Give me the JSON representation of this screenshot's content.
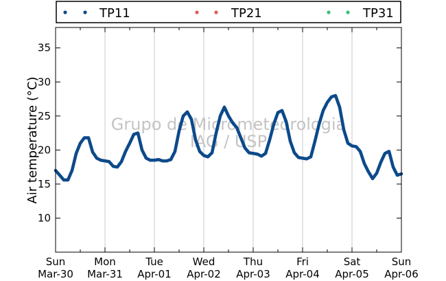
{
  "chart_data": {
    "type": "scatter",
    "ylabel": "Air temperature (°C)",
    "ylim": [
      5,
      38
    ],
    "yticks": [
      10,
      15,
      20,
      25,
      30,
      35
    ],
    "x_ticks": [
      {
        "day": "Sun",
        "date": "Mar-30"
      },
      {
        "day": "Mon",
        "date": "Mar-31"
      },
      {
        "day": "Tue",
        "date": "Apr-01"
      },
      {
        "day": "Wed",
        "date": "Apr-02"
      },
      {
        "day": "Thu",
        "date": "Apr-03"
      },
      {
        "day": "Fri",
        "date": "Apr-04"
      },
      {
        "day": "Sat",
        "date": "Apr-05"
      },
      {
        "day": "Sun",
        "date": "Apr-06"
      }
    ],
    "grid": "vertical",
    "legend_position": "top",
    "watermark": [
      "Grupo de Micrometeorologia",
      "IAG / USP"
    ],
    "series": [
      {
        "name": "TP11",
        "color": "#0d4a8a",
        "points": [
          [
            "Mar-30 00:00",
            17.0
          ],
          [
            "Mar-30 02:00",
            16.3
          ],
          [
            "Mar-30 04:00",
            15.6
          ],
          [
            "Mar-30 06:00",
            15.6
          ],
          [
            "Mar-30 08:00",
            17.0
          ],
          [
            "Mar-30 10:00",
            19.5
          ],
          [
            "Mar-30 12:00",
            21.0
          ],
          [
            "Mar-30 14:00",
            21.8
          ],
          [
            "Mar-30 16:00",
            21.8
          ],
          [
            "Mar-30 18:00",
            19.7
          ],
          [
            "Mar-30 20:00",
            18.8
          ],
          [
            "Mar-30 22:00",
            18.5
          ],
          [
            "Mar-31 00:00",
            18.4
          ],
          [
            "Mar-31 02:00",
            18.3
          ],
          [
            "Mar-31 04:00",
            17.6
          ],
          [
            "Mar-31 06:00",
            17.5
          ],
          [
            "Mar-31 08:00",
            18.3
          ],
          [
            "Mar-31 10:00",
            19.8
          ],
          [
            "Mar-31 12:00",
            21.0
          ],
          [
            "Mar-31 14:00",
            22.3
          ],
          [
            "Mar-31 16:00",
            22.5
          ],
          [
            "Mar-31 18:00",
            20.0
          ],
          [
            "Mar-31 20:00",
            18.8
          ],
          [
            "Mar-31 22:00",
            18.5
          ],
          [
            "Apr-01 00:00",
            18.5
          ],
          [
            "Apr-01 02:00",
            18.6
          ],
          [
            "Apr-01 04:00",
            18.4
          ],
          [
            "Apr-01 06:00",
            18.4
          ],
          [
            "Apr-01 08:00",
            18.6
          ],
          [
            "Apr-01 10:00",
            19.8
          ],
          [
            "Apr-01 12:00",
            22.8
          ],
          [
            "Apr-01 14:00",
            25.0
          ],
          [
            "Apr-01 16:00",
            25.6
          ],
          [
            "Apr-01 18:00",
            24.5
          ],
          [
            "Apr-01 20:00",
            21.5
          ],
          [
            "Apr-01 22:00",
            19.8
          ],
          [
            "Apr-02 00:00",
            19.2
          ],
          [
            "Apr-02 02:00",
            19.0
          ],
          [
            "Apr-02 04:00",
            19.6
          ],
          [
            "Apr-02 06:00",
            22.5
          ],
          [
            "Apr-02 08:00",
            25.0
          ],
          [
            "Apr-02 10:00",
            26.3
          ],
          [
            "Apr-02 12:00",
            25.0
          ],
          [
            "Apr-02 14:00",
            24.0
          ],
          [
            "Apr-02 16:00",
            23.3
          ],
          [
            "Apr-02 18:00",
            21.8
          ],
          [
            "Apr-02 20:00",
            20.3
          ],
          [
            "Apr-02 22:00",
            19.6
          ],
          [
            "Apr-03 00:00",
            19.5
          ],
          [
            "Apr-03 02:00",
            19.4
          ],
          [
            "Apr-03 04:00",
            19.1
          ],
          [
            "Apr-03 06:00",
            19.5
          ],
          [
            "Apr-03 08:00",
            21.5
          ],
          [
            "Apr-03 10:00",
            23.8
          ],
          [
            "Apr-03 12:00",
            25.5
          ],
          [
            "Apr-03 14:00",
            25.8
          ],
          [
            "Apr-03 16:00",
            24.2
          ],
          [
            "Apr-03 18:00",
            21.3
          ],
          [
            "Apr-03 20:00",
            19.6
          ],
          [
            "Apr-03 22:00",
            18.9
          ],
          [
            "Apr-04 00:00",
            18.8
          ],
          [
            "Apr-04 02:00",
            18.7
          ],
          [
            "Apr-04 04:00",
            19.0
          ],
          [
            "Apr-04 06:00",
            21.3
          ],
          [
            "Apr-04 08:00",
            23.8
          ],
          [
            "Apr-04 10:00",
            25.8
          ],
          [
            "Apr-04 12:00",
            27.0
          ],
          [
            "Apr-04 14:00",
            27.8
          ],
          [
            "Apr-04 16:00",
            28.0
          ],
          [
            "Apr-04 18:00",
            26.3
          ],
          [
            "Apr-04 20:00",
            23.0
          ],
          [
            "Apr-04 22:00",
            21.0
          ],
          [
            "Apr-05 00:00",
            20.6
          ],
          [
            "Apr-05 02:00",
            20.5
          ],
          [
            "Apr-05 04:00",
            19.8
          ],
          [
            "Apr-05 06:00",
            18.0
          ],
          [
            "Apr-05 08:00",
            16.8
          ],
          [
            "Apr-05 10:00",
            15.8
          ],
          [
            "Apr-05 12:00",
            16.6
          ],
          [
            "Apr-05 14:00",
            18.2
          ],
          [
            "Apr-05 16:00",
            19.5
          ],
          [
            "Apr-05 18:00",
            19.8
          ],
          [
            "Apr-05 20:00",
            17.5
          ],
          [
            "Apr-05 22:00",
            16.3
          ],
          [
            "Apr-06 00:00",
            16.5
          ]
        ]
      },
      {
        "name": "TP21",
        "color": "#e05a5a",
        "points": []
      },
      {
        "name": "TP31",
        "color": "#3cbf78",
        "points": []
      }
    ]
  }
}
